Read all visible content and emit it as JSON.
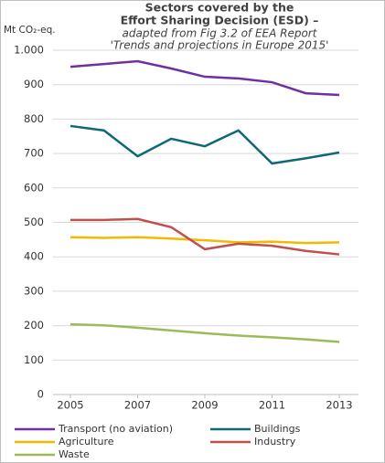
{
  "chart_data": {
    "type": "line",
    "title_lines": [
      "Sectors covered by the",
      "Effort Sharing Decision (ESD) –"
    ],
    "subtitle_lines": [
      "adapted from Fig 3.2 of EEA Report",
      "'Trends and projections in Europe 2015'"
    ],
    "y_label": "Mt CO₂-eq.",
    "x": [
      2005,
      2006,
      2007,
      2008,
      2009,
      2010,
      2011,
      2012,
      2013
    ],
    "xlim": [
      2005,
      2013
    ],
    "xticks": [
      2005,
      2007,
      2009,
      2011,
      2013
    ],
    "ylim": [
      0,
      1000
    ],
    "yticks": [
      0,
      100,
      200,
      300,
      400,
      500,
      600,
      700,
      800,
      900,
      {
        "value": 1000,
        "label": "1.000"
      }
    ],
    "grid": true,
    "series": [
      {
        "name": "Transport (no aviation)",
        "color": "#7030a0",
        "values": [
          952,
          960,
          968,
          947,
          923,
          918,
          907,
          875,
          870
        ]
      },
      {
        "name": "Buildings",
        "color": "#0e6877",
        "values": [
          780,
          767,
          692,
          743,
          721,
          767,
          671,
          686,
          703
        ]
      },
      {
        "name": "Agriculture",
        "color": "#f5b800",
        "values": [
          457,
          455,
          457,
          453,
          448,
          442,
          444,
          440,
          442
        ]
      },
      {
        "name": "Industry",
        "color": "#c0504d",
        "values": [
          507,
          507,
          510,
          486,
          422,
          438,
          432,
          417,
          407
        ]
      },
      {
        "name": "Waste",
        "color": "#9bbb59",
        "values": [
          204,
          201,
          194,
          186,
          178,
          171,
          166,
          160,
          153
        ]
      }
    ]
  }
}
